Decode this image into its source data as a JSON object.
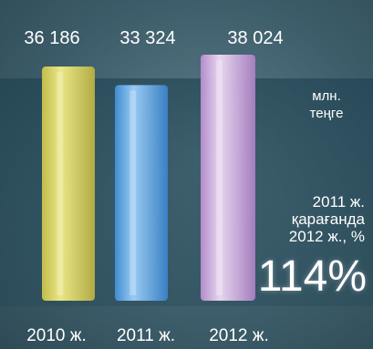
{
  "chart_data": {
    "type": "bar",
    "categories": [
      "2010 ж.",
      "2011 ж.",
      "2012 ж."
    ],
    "values": [
      36186,
      33324,
      38024
    ],
    "value_labels": [
      "36 186",
      "33 324",
      "38 024"
    ],
    "unit": "млн. теңге",
    "colors": [
      "#e8e06a",
      "#6fb6ee",
      "#d9b3e6"
    ],
    "grid": false
  },
  "annotation": {
    "lines": [
      "2011 ж.",
      "қарағанда",
      "2012 ж., %"
    ],
    "percent": "114%"
  }
}
